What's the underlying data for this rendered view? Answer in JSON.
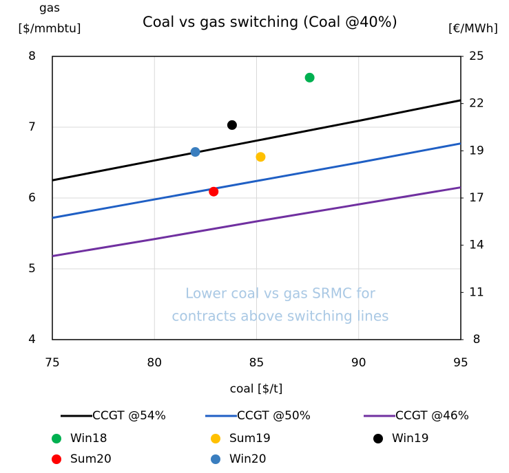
{
  "chart_data": {
    "type": "line",
    "title": "Coal vs gas switching (Coal @40%)",
    "x_label": "coal [$/t]",
    "y_label": [
      "gas",
      "[$/mmbtu]"
    ],
    "y2_label": "[€/MWh]",
    "annotation": [
      "Lower coal vs gas SRMC for",
      "contracts above switching lines"
    ],
    "annotation_color": "#a9c8e4",
    "xlim": [
      75,
      95
    ],
    "xticks": [
      75,
      80,
      85,
      90,
      95
    ],
    "ylim": [
      4,
      8
    ],
    "yticks": [
      4,
      5,
      6,
      7,
      8
    ],
    "y2lim": [
      8,
      25
    ],
    "y2ticks": [
      8,
      {
        "value": 10.833,
        "label": "11"
      },
      {
        "value": 13.667,
        "label": "14"
      },
      {
        "value": 16.5,
        "label": "17"
      },
      {
        "value": 19.333,
        "label": "19"
      },
      {
        "value": 22.167,
        "label": "22"
      },
      25
    ],
    "grid": true,
    "series": [
      {
        "name": "CCGT @54%",
        "type": "line",
        "color": "#000000",
        "x": [
          75,
          80,
          85,
          90,
          95
        ],
        "values": [
          6.25,
          6.53,
          6.81,
          7.09,
          7.38
        ]
      },
      {
        "name": "CCGT @50%",
        "type": "line",
        "color": "#1f5fc4",
        "x": [
          75,
          80,
          85,
          90,
          95
        ],
        "values": [
          5.72,
          5.98,
          6.24,
          6.5,
          6.77
        ]
      },
      {
        "name": "CCGT @46%",
        "type": "line",
        "color": "#7030a0",
        "x": [
          75,
          80,
          85,
          90,
          95
        ],
        "values": [
          5.18,
          5.42,
          5.67,
          5.91,
          6.15
        ]
      },
      {
        "name": "Win18",
        "type": "scatter",
        "color": "#00b050",
        "x": [
          87.6
        ],
        "values": [
          7.7
        ]
      },
      {
        "name": "Sum19",
        "type": "scatter",
        "color": "#ffc000",
        "x": [
          85.2
        ],
        "values": [
          6.58
        ]
      },
      {
        "name": "Win19",
        "type": "scatter",
        "color": "#000000",
        "x": [
          83.8
        ],
        "values": [
          7.03
        ]
      },
      {
        "name": "Sum20",
        "type": "scatter",
        "color": "#ff0000",
        "x": [
          82.9
        ],
        "values": [
          6.09
        ]
      },
      {
        "name": "Win20",
        "type": "scatter",
        "color": "#3a7ebf",
        "x": [
          82.0
        ],
        "values": [
          6.65
        ]
      }
    ]
  }
}
